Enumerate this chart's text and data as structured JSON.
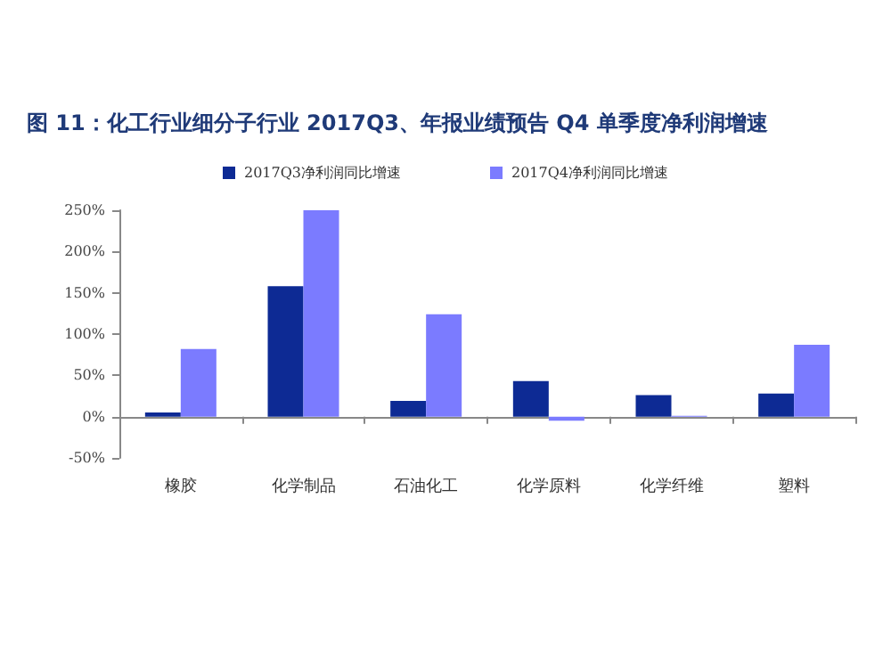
{
  "chart_data": {
    "type": "bar",
    "title": "图 11：化工行业细分子行业 2017Q3、年报业绩预告 Q4 单季度净利润增速",
    "categories": [
      "橡胶",
      "化学制品",
      "石油化工",
      "化学原料",
      "化学纤维",
      "塑料"
    ],
    "series": [
      {
        "name": "2017Q3净利润同比增速",
        "color": "#0d2a94",
        "values": [
          5,
          158,
          19,
          43,
          26,
          28
        ]
      },
      {
        "name": "2017Q4净利润同比增速",
        "color": "#7b7bff",
        "values": [
          82,
          250,
          124,
          -5,
          1,
          87
        ]
      }
    ],
    "ylim": [
      -50,
      250
    ],
    "yticks": [
      {
        "value": -50,
        "label": "-50%"
      },
      {
        "value": 0,
        "label": "0%"
      },
      {
        "value": 50,
        "label": "50%"
      },
      {
        "value": 100,
        "label": "100%"
      },
      {
        "value": 150,
        "label": "150%"
      },
      {
        "value": 200,
        "label": "200%"
      },
      {
        "value": 250,
        "label": "250%"
      }
    ],
    "legend": "top"
  }
}
